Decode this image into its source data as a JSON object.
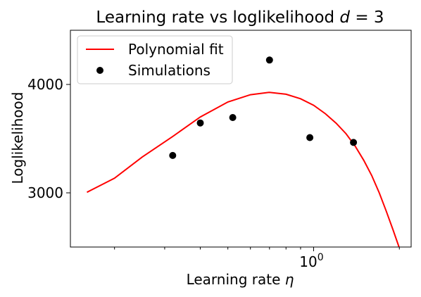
{
  "chart_data": {
    "type": "line",
    "title": "Learning rate vs loglikelihood d = 3",
    "title_parts": {
      "text": "Learning rate vs loglikelihood ",
      "var": "d",
      "rest": " = 3"
    },
    "xlabel": "Learning rate η",
    "xlabel_parts": {
      "text": "Learning rate ",
      "var": "η"
    },
    "ylabel": "Loglikelihood",
    "x_scale": "log",
    "xlim": [
      0.14,
      2.2
    ],
    "ylim": [
      2500,
      4500
    ],
    "x_major_ticks": [
      {
        "value": 1.0,
        "base": "10",
        "exp": "0"
      }
    ],
    "x_minor_ticks": [
      0.2,
      0.3,
      0.4,
      0.5,
      0.6,
      0.7,
      0.8,
      0.9,
      2.0
    ],
    "y_ticks": [
      3000,
      4000
    ],
    "grid": false,
    "legend_position": "top-left",
    "series": [
      {
        "name": "Polynomial fit",
        "kind": "line",
        "color": "#ff0000",
        "x": [
          0.16,
          0.2,
          0.25,
          0.32,
          0.4,
          0.5,
          0.6,
          0.7,
          0.8,
          0.9,
          1.0,
          1.1,
          1.2,
          1.3,
          1.4,
          1.5,
          1.6,
          1.7,
          1.8,
          1.9,
          2.0
        ],
        "y": [
          3005,
          3135,
          3330,
          3520,
          3700,
          3838,
          3905,
          3927,
          3910,
          3868,
          3808,
          3730,
          3642,
          3545,
          3430,
          3300,
          3160,
          3000,
          2830,
          2660,
          2490
        ]
      },
      {
        "name": "Simulations",
        "kind": "scatter",
        "color": "#000000",
        "x": [
          0.32,
          0.4,
          0.52,
          0.7,
          0.97,
          1.38
        ],
        "y": [
          3345,
          3645,
          3695,
          4225,
          3510,
          3465
        ]
      }
    ]
  }
}
